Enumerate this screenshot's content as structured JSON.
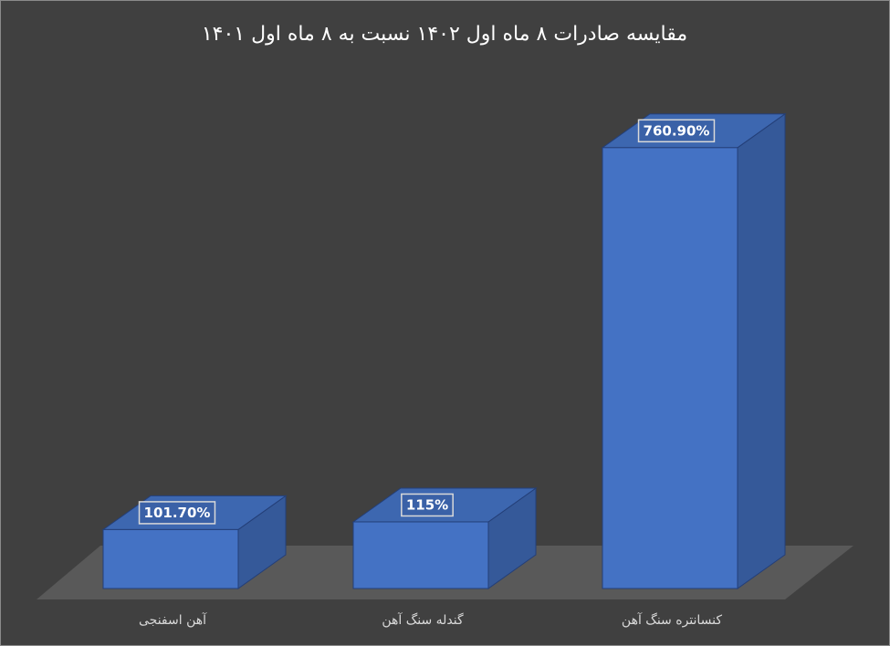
{
  "chart_data": {
    "type": "bar3d",
    "title": "مقایسه صادرات ۸ ماه اول ۱۴۰۲ نسبت به ۸ ماه اول ۱۴۰۱",
    "categories": [
      "آهن اسفنجی",
      "گندله سنگ آهن",
      "کنسانتره سنگ آهن"
    ],
    "values": [
      101.7,
      115,
      760.9
    ],
    "value_labels": [
      "101.70%",
      "115%",
      "760.90%"
    ],
    "color": "#4472c4"
  }
}
